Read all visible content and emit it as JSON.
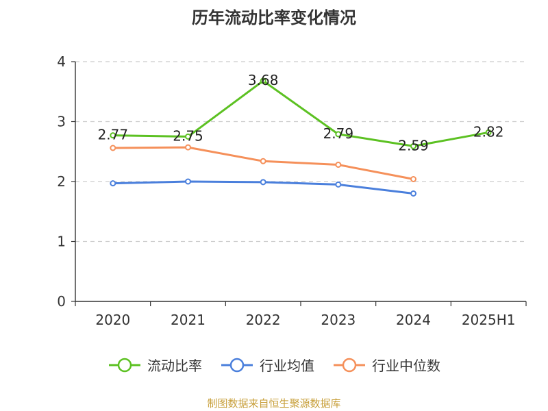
{
  "chart_data": {
    "type": "line",
    "title": "历年流动比率变化情况",
    "categories": [
      "2020",
      "2021",
      "2022",
      "2023",
      "2024",
      "2025H1"
    ],
    "ylim": [
      0,
      4
    ],
    "yticks": [
      "0",
      "1",
      "2",
      "3",
      "4"
    ],
    "grid": true,
    "legend_position": "bottom",
    "series": [
      {
        "name": "流动比率",
        "color": "#5cc122",
        "values": [
          2.77,
          2.75,
          3.68,
          2.79,
          2.59,
          2.82
        ],
        "labels": [
          "2.77",
          "2.75",
          "3.68",
          "2.79",
          "2.59",
          "2.82"
        ]
      },
      {
        "name": "行业均值",
        "color": "#4a7fdc",
        "values": [
          1.97,
          2.0,
          1.99,
          1.95,
          1.8,
          null
        ]
      },
      {
        "name": "行业中位数",
        "color": "#f5905a",
        "values": [
          2.56,
          2.57,
          2.34,
          2.28,
          2.04,
          null
        ]
      }
    ]
  },
  "source_note": "制图数据来自恒生聚源数据库"
}
